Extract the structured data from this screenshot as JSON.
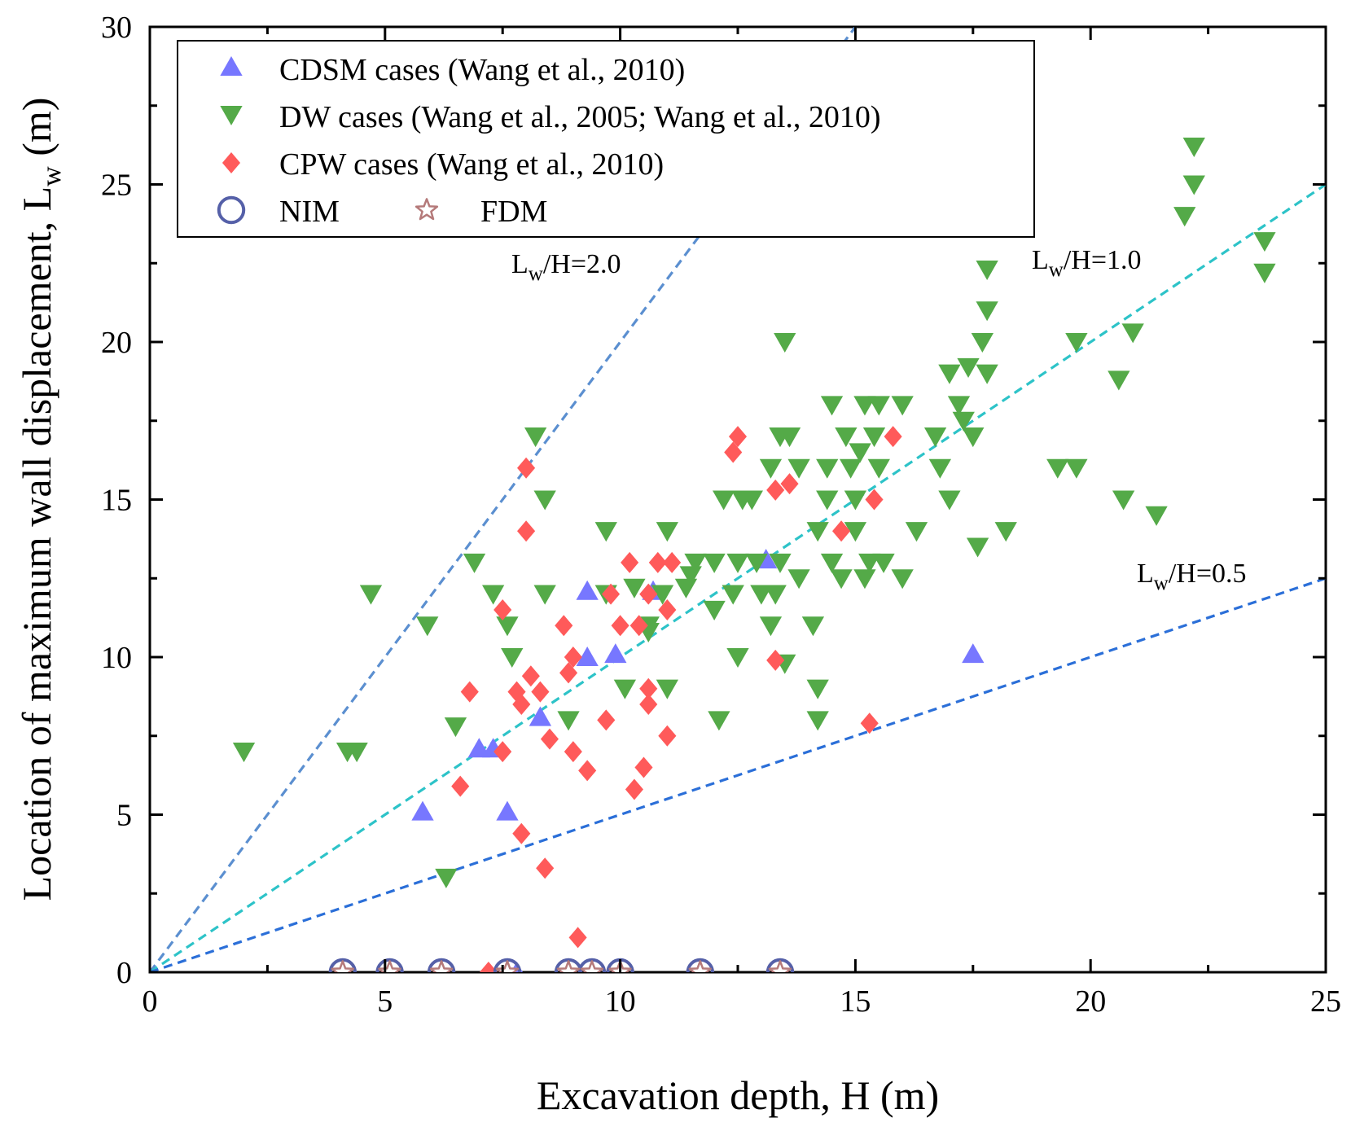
{
  "colors": {
    "cdsm": "#7777ff",
    "dw": "#54aa48",
    "cpw": "#ff5a5a",
    "nim": "#5560a8",
    "fdm": "#b57a7a",
    "line_2_0": "#5b8fd0",
    "line_1_0": "#2dc3c8",
    "line_0_5": "#2b6fd8"
  },
  "chart_data": {
    "type": "scatter",
    "xlabel": "Excavation depth, H (m)",
    "ylabel_main": "Location of maximum wall displacement, L",
    "ylabel_sub": "w",
    "ylabel_tail": " (m)",
    "xlim": [
      0,
      25
    ],
    "ylim": [
      0,
      30
    ],
    "xticks": [
      "0",
      "5",
      "10",
      "15",
      "20",
      "25"
    ],
    "yticks": [
      "0",
      "5",
      "10",
      "15",
      "20",
      "25",
      "30"
    ],
    "legend_position": "top-left",
    "ratio_lines": [
      {
        "slope": 2.0,
        "label_main": "L",
        "label_sub": "w",
        "label_tail": "/H=2.0"
      },
      {
        "slope": 1.0,
        "label_main": "L",
        "label_sub": "w",
        "label_tail": "/H=1.0"
      },
      {
        "slope": 0.5,
        "label_main": "L",
        "label_sub": "w",
        "label_tail": "/H=0.5"
      }
    ],
    "series": [
      {
        "key": "cdsm",
        "name": "CDSM cases (Wang et al., 2010)",
        "marker": "triangle-up",
        "points": [
          [
            5.8,
            5.1
          ],
          [
            7.0,
            7.1
          ],
          [
            7.3,
            7.1
          ],
          [
            7.6,
            5.1
          ],
          [
            7.8,
            0.0
          ],
          [
            8.3,
            8.1
          ],
          [
            9.3,
            12.1
          ],
          [
            9.3,
            10.0
          ],
          [
            9.9,
            10.1
          ],
          [
            10.7,
            12.1
          ],
          [
            13.1,
            13.1
          ],
          [
            17.5,
            10.1
          ]
        ]
      },
      {
        "key": "dw",
        "name": "DW cases (Wang et al., 2005; Wang et al., 2010)",
        "marker": "triangle-down",
        "points": [
          [
            2.0,
            7.0
          ],
          [
            4.2,
            7.0
          ],
          [
            4.4,
            7.0
          ],
          [
            4.7,
            12.0
          ],
          [
            5.9,
            11.0
          ],
          [
            6.3,
            3.0
          ],
          [
            6.5,
            7.8
          ],
          [
            6.9,
            13.0
          ],
          [
            7.3,
            12.0
          ],
          [
            7.6,
            11.0
          ],
          [
            7.7,
            10.0
          ],
          [
            8.2,
            17.0
          ],
          [
            8.4,
            15.0
          ],
          [
            8.4,
            12.0
          ],
          [
            8.9,
            8.0
          ],
          [
            9.7,
            14.0
          ],
          [
            9.7,
            12.0
          ],
          [
            10.1,
            9.0
          ],
          [
            10.3,
            12.2
          ],
          [
            10.6,
            11.0
          ],
          [
            10.6,
            10.8
          ],
          [
            10.9,
            12.0
          ],
          [
            11.0,
            14.0
          ],
          [
            11.0,
            9.0
          ],
          [
            11.4,
            12.2
          ],
          [
            11.5,
            12.6
          ],
          [
            11.6,
            13.0
          ],
          [
            12.0,
            13.0
          ],
          [
            12.0,
            11.5
          ],
          [
            12.1,
            8.0
          ],
          [
            12.2,
            15.0
          ],
          [
            12.4,
            12.0
          ],
          [
            12.5,
            10.0
          ],
          [
            12.5,
            13.0
          ],
          [
            12.6,
            15.0
          ],
          [
            12.8,
            15.0
          ],
          [
            12.9,
            13.0
          ],
          [
            13.0,
            12.0
          ],
          [
            13.2,
            16.0
          ],
          [
            13.2,
            11.0
          ],
          [
            13.3,
            12.0
          ],
          [
            13.4,
            17.0
          ],
          [
            13.4,
            13.0
          ],
          [
            13.5,
            20.0
          ],
          [
            13.5,
            9.8
          ],
          [
            13.6,
            17.0
          ],
          [
            13.8,
            16.0
          ],
          [
            13.8,
            12.5
          ],
          [
            14.1,
            11.0
          ],
          [
            14.2,
            8.0
          ],
          [
            14.2,
            9.0
          ],
          [
            14.2,
            14.0
          ],
          [
            14.4,
            16.0
          ],
          [
            14.4,
            15.0
          ],
          [
            14.5,
            18.0
          ],
          [
            14.5,
            13.0
          ],
          [
            14.7,
            12.5
          ],
          [
            14.8,
            17.0
          ],
          [
            14.9,
            16.0
          ],
          [
            15.0,
            15.0
          ],
          [
            15.0,
            14.0
          ],
          [
            15.1,
            16.5
          ],
          [
            15.2,
            18.0
          ],
          [
            15.2,
            12.5
          ],
          [
            15.3,
            13.0
          ],
          [
            15.4,
            17.0
          ],
          [
            15.5,
            18.0
          ],
          [
            15.5,
            16.0
          ],
          [
            15.6,
            13.0
          ],
          [
            16.0,
            18.0
          ],
          [
            16.0,
            12.5
          ],
          [
            16.3,
            14.0
          ],
          [
            16.7,
            17.0
          ],
          [
            16.8,
            16.0
          ],
          [
            17.0,
            19.0
          ],
          [
            17.0,
            15.0
          ],
          [
            17.2,
            18.0
          ],
          [
            17.3,
            17.5
          ],
          [
            17.4,
            19.2
          ],
          [
            17.5,
            17.0
          ],
          [
            17.6,
            13.5
          ],
          [
            17.7,
            20.0
          ],
          [
            17.8,
            19.0
          ],
          [
            17.8,
            21.0
          ],
          [
            17.8,
            22.3
          ],
          [
            18.2,
            14.0
          ],
          [
            19.3,
            16.0
          ],
          [
            19.7,
            20.0
          ],
          [
            19.7,
            16.0
          ],
          [
            20.6,
            18.8
          ],
          [
            20.7,
            15.0
          ],
          [
            20.9,
            20.3
          ],
          [
            21.4,
            14.5
          ],
          [
            22.0,
            24.0
          ],
          [
            22.2,
            26.2
          ],
          [
            22.2,
            25.0
          ],
          [
            23.7,
            23.2
          ],
          [
            23.7,
            22.2
          ]
        ]
      },
      {
        "key": "cpw",
        "name": "CPW cases (Wang et al., 2010)",
        "marker": "diamond",
        "points": [
          [
            6.6,
            5.9
          ],
          [
            6.8,
            8.9
          ],
          [
            7.2,
            0.0
          ],
          [
            7.5,
            11.5
          ],
          [
            7.5,
            7.0
          ],
          [
            7.8,
            8.9
          ],
          [
            7.9,
            8.5
          ],
          [
            7.9,
            4.4
          ],
          [
            8.0,
            16.0
          ],
          [
            8.0,
            14.0
          ],
          [
            8.1,
            9.4
          ],
          [
            8.3,
            8.9
          ],
          [
            8.4,
            3.3
          ],
          [
            8.5,
            7.4
          ],
          [
            8.8,
            11.0
          ],
          [
            8.9,
            9.5
          ],
          [
            9.0,
            10.0
          ],
          [
            9.0,
            7.0
          ],
          [
            9.1,
            1.1
          ],
          [
            9.3,
            6.4
          ],
          [
            9.7,
            8.0
          ],
          [
            9.8,
            12.0
          ],
          [
            10.0,
            11.0
          ],
          [
            10.2,
            13.0
          ],
          [
            10.3,
            5.8
          ],
          [
            10.4,
            11.0
          ],
          [
            10.5,
            6.5
          ],
          [
            10.6,
            12.0
          ],
          [
            10.6,
            9.0
          ],
          [
            10.6,
            8.5
          ],
          [
            10.8,
            13.0
          ],
          [
            11.0,
            11.5
          ],
          [
            11.0,
            7.5
          ],
          [
            11.1,
            13.0
          ],
          [
            12.4,
            16.5
          ],
          [
            12.5,
            17.0
          ],
          [
            13.3,
            15.3
          ],
          [
            13.3,
            9.9
          ],
          [
            13.6,
            15.5
          ],
          [
            14.7,
            14.0
          ],
          [
            15.3,
            7.9
          ],
          [
            15.4,
            15.0
          ],
          [
            15.8,
            17.0
          ]
        ]
      },
      {
        "key": "nim",
        "name": "NIM",
        "marker": "circle",
        "points": [
          [
            4.1,
            0
          ],
          [
            5.1,
            0
          ],
          [
            6.2,
            0
          ],
          [
            7.6,
            0
          ],
          [
            8.9,
            0
          ],
          [
            9.4,
            0
          ],
          [
            10.0,
            0
          ],
          [
            11.7,
            0
          ],
          [
            13.4,
            0
          ]
        ]
      },
      {
        "key": "fdm",
        "name": "FDM",
        "marker": "star",
        "points": [
          [
            4.1,
            0
          ],
          [
            5.1,
            0
          ],
          [
            6.2,
            0
          ],
          [
            7.6,
            0
          ],
          [
            8.9,
            0
          ],
          [
            9.4,
            0
          ],
          [
            10.0,
            0
          ],
          [
            11.7,
            0
          ],
          [
            13.4,
            0
          ]
        ]
      }
    ]
  }
}
